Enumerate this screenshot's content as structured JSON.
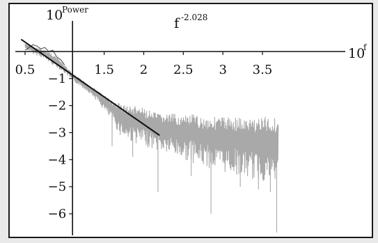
{
  "chart_data": {
    "type": "line",
    "title": "f",
    "title_exponent": "-2.028",
    "xlabel": "10",
    "xlabel_superscript": "f",
    "ylabel": "10",
    "ylabel_superscript": "Power",
    "xlim": [
      0.5,
      3.7
    ],
    "ylim": [
      -6.5,
      0.6
    ],
    "x_ticks": [
      0.5,
      1.5,
      2,
      2.5,
      3,
      3.5
    ],
    "x_tick_labels": [
      "0.5",
      "1.5",
      "2",
      "2.5",
      "3",
      "3.5"
    ],
    "y_ticks": [
      -1,
      -2,
      -3,
      -4,
      -5,
      -6
    ],
    "y_tick_labels": [
      "-1",
      "-2",
      "-3",
      "-4",
      "-5",
      "-6"
    ],
    "grid": false,
    "legend": "none",
    "series": [
      {
        "kind": "spectrum",
        "color": "#a9a9a9",
        "x_start": 0.5,
        "x_end": 3.7,
        "envelope_x": [
          0.5,
          0.6,
          0.7,
          0.8,
          0.9,
          1.0,
          1.1,
          1.2,
          1.3,
          1.4,
          1.5,
          1.6,
          1.7,
          1.8,
          1.9,
          2.0,
          2.1,
          2.2,
          2.3,
          2.4,
          2.5,
          2.6,
          2.7,
          2.8,
          2.9,
          3.0,
          3.1,
          3.2,
          3.3,
          3.4,
          3.5,
          3.6,
          3.7
        ],
        "envelope_upper": [
          0.3,
          0.2,
          0.1,
          0.0,
          -0.2,
          -0.5,
          -0.8,
          -1.0,
          -1.2,
          -1.4,
          -1.6,
          -1.8,
          -1.9,
          -2.0,
          -2.0,
          -2.1,
          -2.2,
          -2.3,
          -2.3,
          -2.3,
          -2.4,
          -2.3,
          -2.4,
          -2.4,
          -2.4,
          -2.4,
          -2.4,
          -2.4,
          -2.5,
          -2.4,
          -2.4,
          -2.4,
          -2.4
        ],
        "envelope_lower": [
          0.1,
          -0.1,
          -0.2,
          -0.4,
          -0.6,
          -0.8,
          -1.1,
          -1.3,
          -1.5,
          -1.8,
          -2.2,
          -2.6,
          -3.1,
          -3.3,
          -3.4,
          -3.5,
          -3.6,
          -3.7,
          -3.8,
          -3.9,
          -4.0,
          -4.1,
          -4.2,
          -4.3,
          -4.4,
          -4.5,
          -4.5,
          -4.6,
          -4.7,
          -4.8,
          -4.8,
          -4.9,
          -5.0
        ],
        "spikes": [
          {
            "x": 1.6,
            "y": -3.5
          },
          {
            "x": 1.86,
            "y": -3.9
          },
          {
            "x": 2.18,
            "y": -5.2
          },
          {
            "x": 2.6,
            "y": -4.6
          },
          {
            "x": 2.85,
            "y": -6.0
          },
          {
            "x": 3.22,
            "y": -5.0
          },
          {
            "x": 3.45,
            "y": -5.1
          },
          {
            "x": 3.6,
            "y": -5.2
          },
          {
            "x": 3.68,
            "y": -6.7
          }
        ]
      },
      {
        "kind": "smoothed",
        "color": "#444444",
        "x": [
          0.5,
          0.55,
          0.6,
          0.65,
          0.7,
          0.75,
          0.8,
          0.85,
          0.9,
          0.95,
          1.0
        ],
        "y": [
          0.05,
          0.15,
          0.25,
          0.2,
          0.1,
          0.15,
          0.0,
          0.05,
          -0.2,
          -0.3,
          -0.5
        ]
      },
      {
        "kind": "fit",
        "color": "#111111",
        "slope": -2.028,
        "x": [
          0.45,
          2.2
        ],
        "y": [
          0.45,
          -3.1
        ]
      }
    ]
  }
}
